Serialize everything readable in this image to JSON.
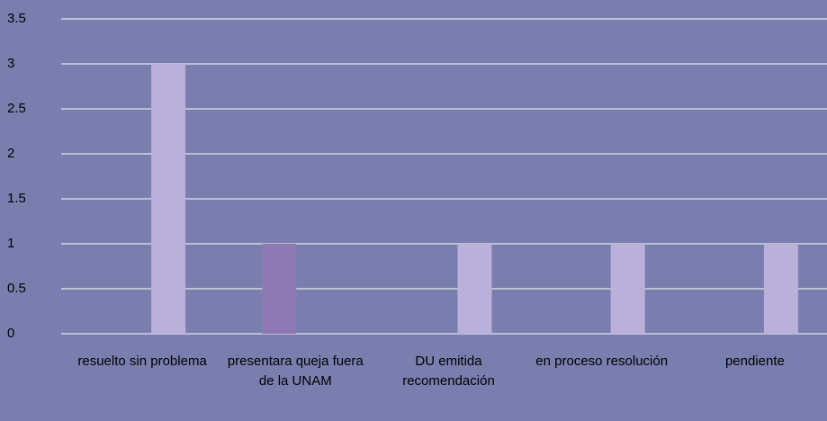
{
  "chart_data": {
    "type": "bar",
    "categories": [
      "resuelto sin problema",
      "presentara queja fuera de la UNAM",
      "DU emitida recomendación",
      "en proceso resolución",
      "pendiente"
    ],
    "series": [
      {
        "color": "#8f79b2",
        "values": [
          null,
          1,
          null,
          null,
          null
        ]
      },
      {
        "color": "#b9b1d9",
        "values": [
          3,
          null,
          1,
          1,
          1
        ]
      }
    ],
    "ylim": [
      0,
      3.5
    ],
    "yticks": [
      0,
      0.5,
      1,
      1.5,
      2,
      2.5,
      3,
      3.5
    ],
    "grid": true
  }
}
